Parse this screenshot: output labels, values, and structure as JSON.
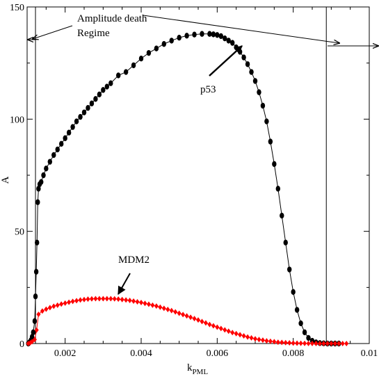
{
  "chart_data": {
    "type": "scatter",
    "title": "",
    "xlabel": "k",
    "xlabel_sub": "PML",
    "ylabel": "A",
    "xlim": [
      0.001,
      0.01
    ],
    "ylim": [
      0,
      150
    ],
    "xticks": [
      0.002,
      0.004,
      0.006,
      0.008,
      0.01
    ],
    "xtick_labels": [
      "0.002",
      "0.004",
      "0.006",
      "0.008",
      "0.01"
    ],
    "yticks": [
      0,
      50,
      100,
      150
    ],
    "ytick_labels": [
      "0",
      "50",
      "100",
      "150"
    ],
    "grid": false,
    "legend": "none",
    "vlines": [
      0.00122,
      0.00887
    ],
    "annotations": {
      "regime_line1": "Amplitude death",
      "regime_line2": "Regime",
      "p53": "p53",
      "mdm2": "MDM2"
    },
    "series": [
      {
        "name": "p53",
        "color": "#000000",
        "marker": "circle",
        "x": [
          0.00103,
          0.00106,
          0.0011,
          0.00113,
          0.00116,
          0.0012,
          0.00122,
          0.00124,
          0.00126,
          0.00128,
          0.0013,
          0.00133,
          0.00137,
          0.00143,
          0.0015,
          0.0016,
          0.0017,
          0.0018,
          0.0019,
          0.002,
          0.0021,
          0.0022,
          0.0023,
          0.0024,
          0.0025,
          0.0026,
          0.0027,
          0.0028,
          0.0029,
          0.003,
          0.0031,
          0.0032,
          0.0034,
          0.0036,
          0.0038,
          0.004,
          0.0042,
          0.0044,
          0.0046,
          0.0048,
          0.005,
          0.0052,
          0.0054,
          0.0056,
          0.0058,
          0.0059,
          0.006,
          0.0061,
          0.0062,
          0.0063,
          0.0064,
          0.0065,
          0.0066,
          0.0067,
          0.0068,
          0.0069,
          0.007,
          0.0071,
          0.0072,
          0.0073,
          0.0074,
          0.0075,
          0.0076,
          0.0077,
          0.0078,
          0.0079,
          0.008,
          0.0081,
          0.0082,
          0.0083,
          0.0084,
          0.0085,
          0.0086,
          0.0087,
          0.0088,
          0.0089,
          0.009,
          0.0091,
          0.0092
        ],
        "y": [
          0,
          0.5,
          1.5,
          3,
          5,
          10,
          21,
          32,
          45,
          63,
          69,
          71,
          72,
          75,
          78,
          81,
          84,
          86.5,
          89,
          91.5,
          94,
          96.5,
          99,
          101,
          103,
          105,
          107,
          109,
          111,
          113,
          114.5,
          116,
          119.5,
          121,
          124,
          127,
          129.5,
          131.5,
          133.5,
          135,
          136.3,
          137.2,
          137.7,
          138,
          138,
          137.8,
          137.5,
          137,
          136,
          135,
          134,
          132,
          130,
          127.5,
          124.5,
          121,
          117,
          112,
          106,
          99,
          90,
          80,
          69,
          57,
          45,
          33,
          23,
          15,
          9,
          5,
          2.5,
          1.2,
          0.5,
          0.2,
          0.1,
          0,
          0,
          0,
          0
        ]
      },
      {
        "name": "MDM2",
        "color": "#ff0000",
        "marker": "diamond",
        "x": [
          0.00103,
          0.00108,
          0.00113,
          0.0012,
          0.00125,
          0.0013,
          0.0014,
          0.0015,
          0.0016,
          0.0017,
          0.0018,
          0.0019,
          0.002,
          0.0021,
          0.0022,
          0.0023,
          0.0024,
          0.0025,
          0.0026,
          0.0027,
          0.0028,
          0.0029,
          0.003,
          0.0031,
          0.0032,
          0.0033,
          0.0034,
          0.0035,
          0.0036,
          0.0037,
          0.0038,
          0.0039,
          0.004,
          0.0041,
          0.0042,
          0.0043,
          0.0044,
          0.0045,
          0.0046,
          0.0047,
          0.0048,
          0.0049,
          0.005,
          0.0051,
          0.0052,
          0.0053,
          0.0054,
          0.0055,
          0.0056,
          0.0057,
          0.0058,
          0.0059,
          0.006,
          0.0061,
          0.0062,
          0.0063,
          0.0064,
          0.0065,
          0.0066,
          0.0067,
          0.0068,
          0.0069,
          0.007,
          0.0071,
          0.0072,
          0.0073,
          0.0074,
          0.0075,
          0.0076,
          0.0077,
          0.0078,
          0.0079,
          0.008,
          0.0081,
          0.0082,
          0.0083,
          0.0084,
          0.0085,
          0.0086,
          0.0087,
          0.0088,
          0.0089,
          0.009,
          0.0091,
          0.0092,
          0.0093,
          0.0094
        ],
        "y": [
          0,
          0.3,
          0.8,
          1.8,
          6,
          13,
          14.5,
          15.3,
          16,
          16.6,
          17.1,
          17.6,
          18,
          18.4,
          18.8,
          19.1,
          19.4,
          19.6,
          19.8,
          19.9,
          20,
          20,
          20,
          20,
          20,
          19.9,
          19.8,
          19.6,
          19.4,
          19.2,
          18.9,
          18.6,
          18.3,
          17.9,
          17.5,
          17.1,
          16.7,
          16.2,
          15.7,
          15.2,
          14.7,
          14.1,
          13.5,
          12.9,
          12.3,
          11.7,
          11.1,
          10.5,
          9.8,
          9.2,
          8.5,
          7.9,
          7.3,
          6.7,
          6.1,
          5.5,
          4.9,
          4.4,
          3.9,
          3.4,
          2.9,
          2.5,
          2.1,
          1.8,
          1.5,
          1.2,
          1,
          0.8,
          0.6,
          0.5,
          0.4,
          0.3,
          0.2,
          0.15,
          0.1,
          0.08,
          0.05,
          0.03,
          0.02,
          0.01,
          0,
          0,
          0,
          0,
          0,
          0,
          0
        ]
      }
    ]
  }
}
